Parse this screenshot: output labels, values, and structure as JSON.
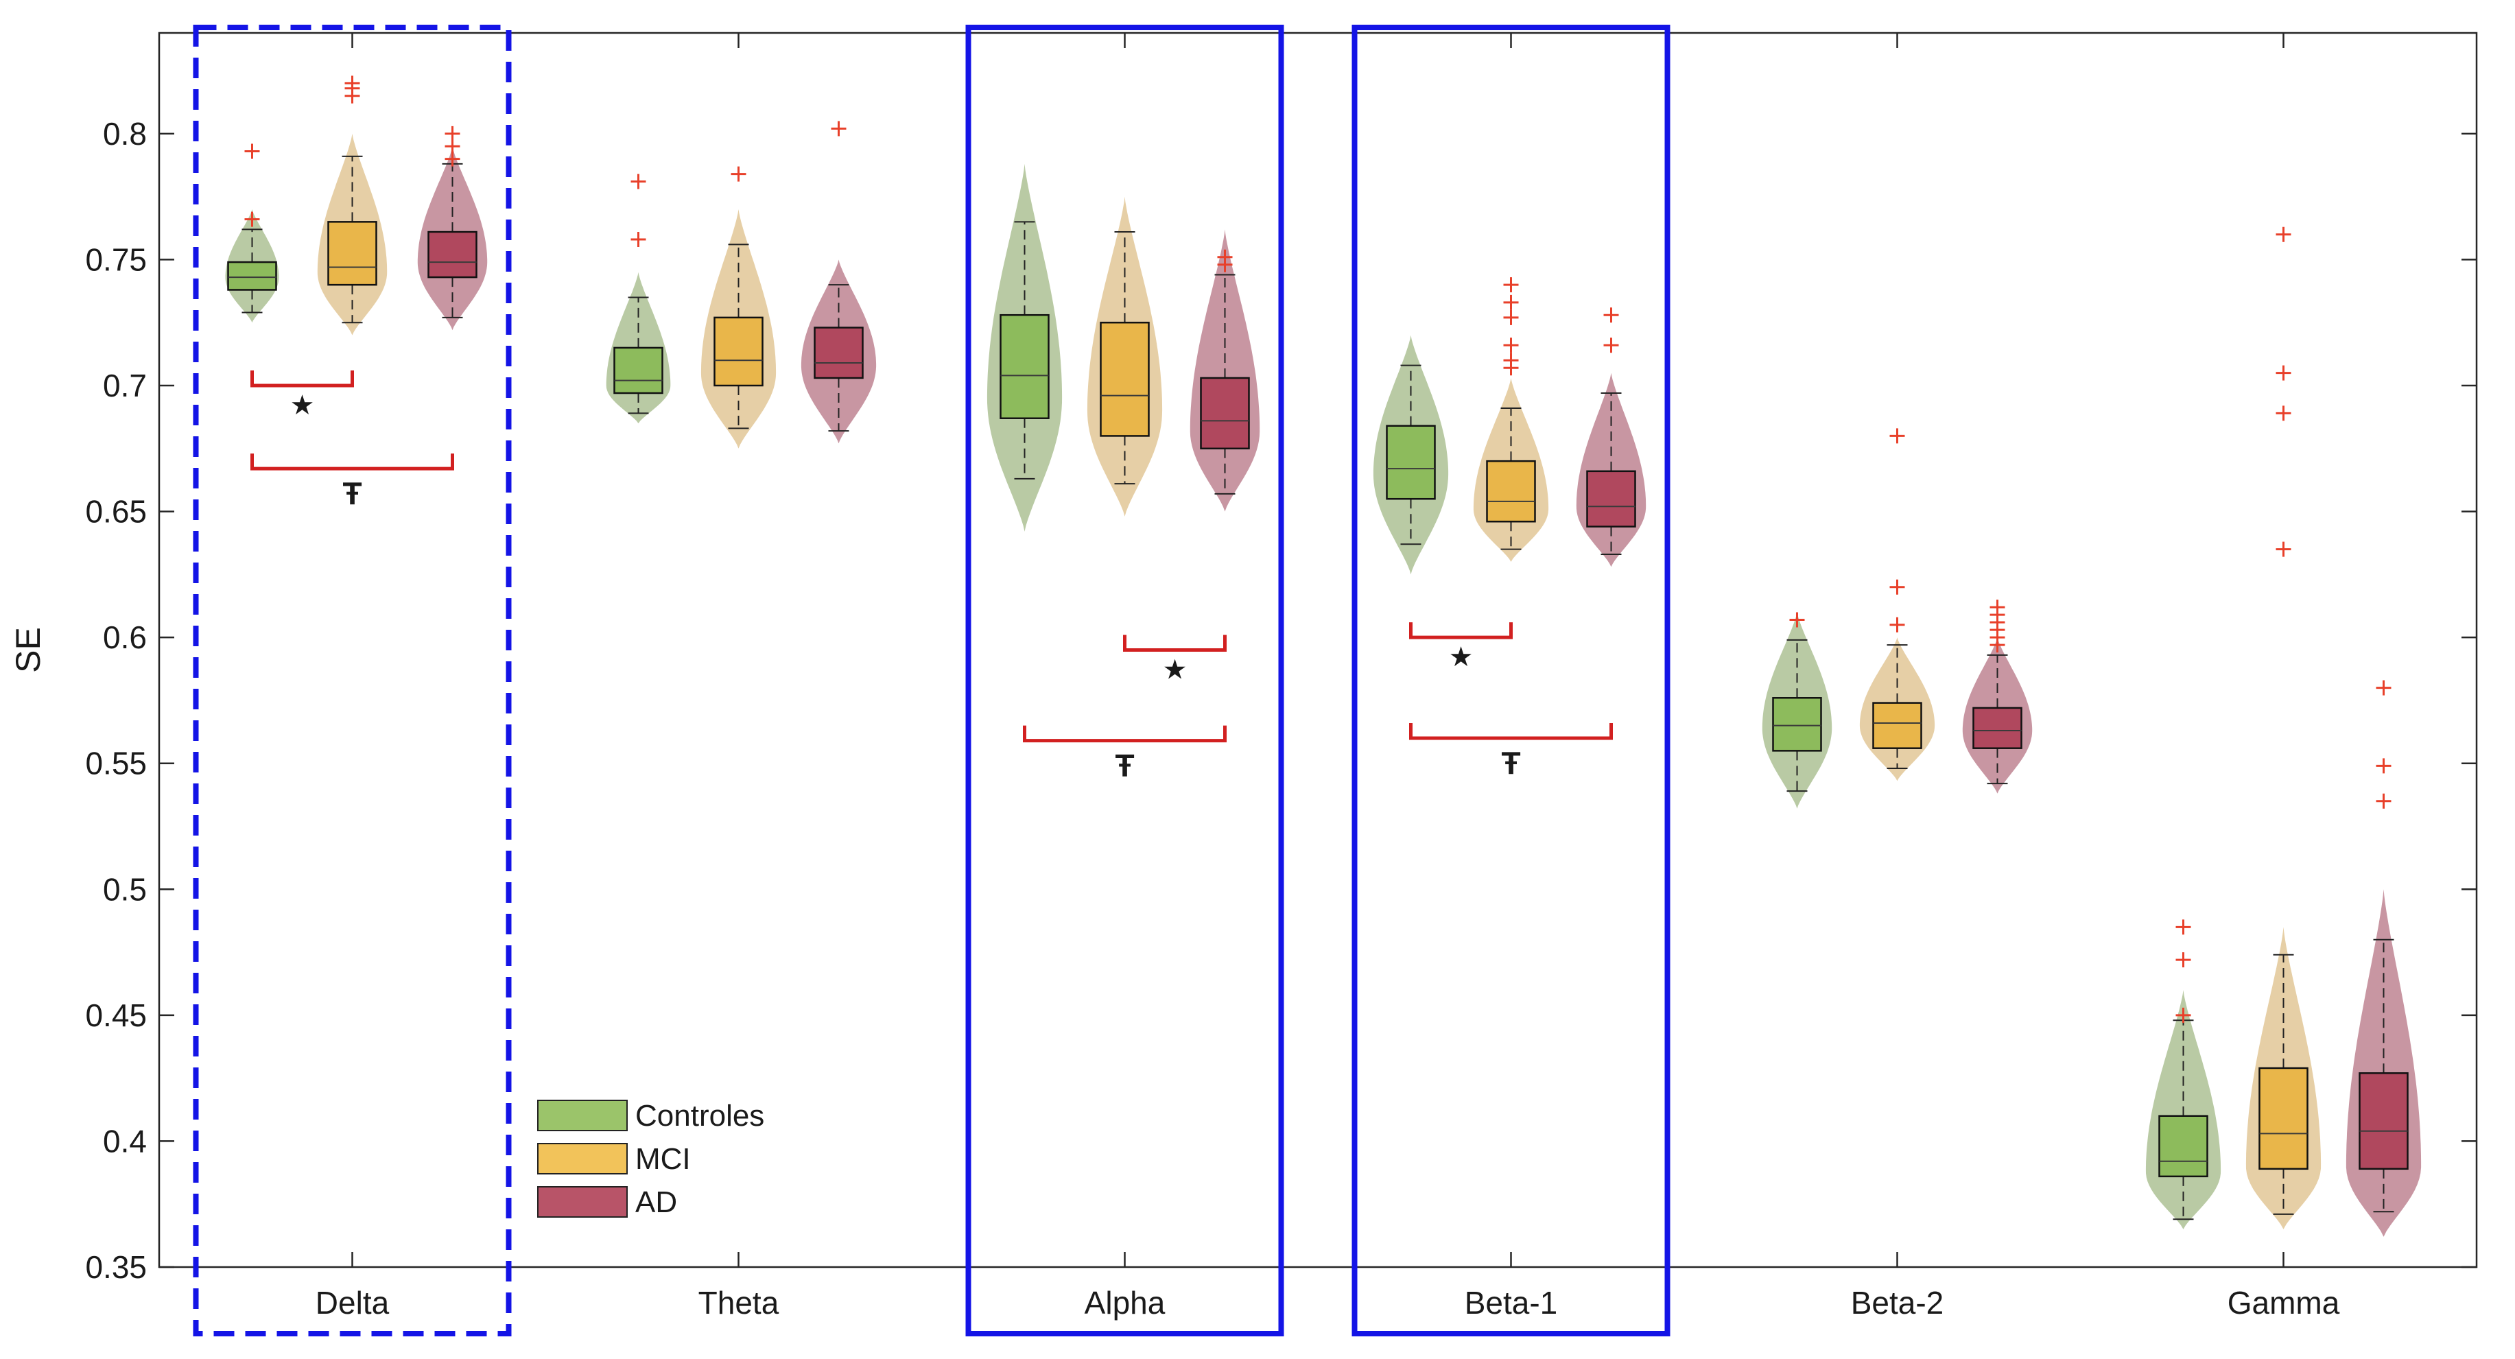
{
  "chart_data": {
    "type": "violin-box",
    "title": "",
    "xlabel": "",
    "ylabel": "SE",
    "ylim": [
      0.35,
      0.84
    ],
    "yticks": [
      0.35,
      0.4,
      0.45,
      0.5,
      0.55,
      0.6,
      0.65,
      0.7,
      0.75,
      0.8
    ],
    "ytick_labels": [
      "0.35",
      "0.4",
      "0.45",
      "0.5",
      "0.55",
      "0.6",
      "0.65",
      "0.7",
      "0.75",
      "0.8"
    ],
    "categories": [
      "Delta",
      "Theta",
      "Alpha",
      "Beta-1",
      "Beta-2",
      "Gamma"
    ],
    "legend": [
      {
        "name": "Controles",
        "color": "#9bc46a"
      },
      {
        "name": "MCI",
        "color": "#f2c35a"
      },
      {
        "name": "AD",
        "color": "#b85468"
      }
    ],
    "groups": [
      {
        "name": "Controles",
        "violin_color": "#7f9f5a",
        "box_color": "#8dbb5c"
      },
      {
        "name": "MCI",
        "violin_color": "#d1a85c",
        "box_color": "#e9b64a"
      },
      {
        "name": "AD",
        "violin_color": "#9a3f55",
        "box_color": "#b0485e"
      }
    ],
    "series": [
      {
        "band": "Delta",
        "group": "Controles",
        "q1": 0.738,
        "median": 0.743,
        "q3": 0.749,
        "wlo": 0.729,
        "whi": 0.762,
        "vmin": 0.725,
        "vmax": 0.77,
        "mode": 0.743,
        "width": 0.5,
        "outliers": [
          0.766,
          0.793
        ]
      },
      {
        "band": "Delta",
        "group": "MCI",
        "q1": 0.74,
        "median": 0.747,
        "q3": 0.765,
        "wlo": 0.725,
        "whi": 0.791,
        "vmin": 0.72,
        "vmax": 0.8,
        "mode": 0.745,
        "width": 0.65,
        "outliers": [
          0.815,
          0.818,
          0.82
        ]
      },
      {
        "band": "Delta",
        "group": "AD",
        "q1": 0.743,
        "median": 0.749,
        "q3": 0.761,
        "wlo": 0.727,
        "whi": 0.788,
        "vmin": 0.722,
        "vmax": 0.795,
        "mode": 0.749,
        "width": 0.65,
        "outliers": [
          0.79,
          0.795,
          0.8
        ]
      },
      {
        "band": "Theta",
        "group": "Controles",
        "q1": 0.697,
        "median": 0.702,
        "q3": 0.715,
        "wlo": 0.689,
        "whi": 0.735,
        "vmin": 0.685,
        "vmax": 0.745,
        "mode": 0.7,
        "width": 0.6,
        "outliers": [
          0.758,
          0.781
        ]
      },
      {
        "band": "Theta",
        "group": "MCI",
        "q1": 0.7,
        "median": 0.71,
        "q3": 0.727,
        "wlo": 0.683,
        "whi": 0.756,
        "vmin": 0.675,
        "vmax": 0.77,
        "mode": 0.705,
        "width": 0.7,
        "outliers": [
          0.784
        ]
      },
      {
        "band": "Theta",
        "group": "AD",
        "q1": 0.703,
        "median": 0.709,
        "q3": 0.723,
        "wlo": 0.682,
        "whi": 0.74,
        "vmin": 0.677,
        "vmax": 0.75,
        "mode": 0.708,
        "width": 0.7,
        "outliers": [
          0.802
        ]
      },
      {
        "band": "Alpha",
        "group": "Controles",
        "q1": 0.687,
        "median": 0.704,
        "q3": 0.728,
        "wlo": 0.663,
        "whi": 0.765,
        "vmin": 0.642,
        "vmax": 0.788,
        "mode": 0.695,
        "width": 0.7,
        "outliers": []
      },
      {
        "band": "Alpha",
        "group": "MCI",
        "q1": 0.68,
        "median": 0.696,
        "q3": 0.725,
        "wlo": 0.661,
        "whi": 0.761,
        "vmin": 0.648,
        "vmax": 0.775,
        "mode": 0.69,
        "width": 0.7,
        "outliers": []
      },
      {
        "band": "Alpha",
        "group": "AD",
        "q1": 0.675,
        "median": 0.686,
        "q3": 0.703,
        "wlo": 0.657,
        "whi": 0.744,
        "vmin": 0.65,
        "vmax": 0.762,
        "mode": 0.682,
        "width": 0.65,
        "outliers": [
          0.748,
          0.751
        ]
      },
      {
        "band": "Beta-1",
        "group": "Controles",
        "q1": 0.655,
        "median": 0.667,
        "q3": 0.684,
        "wlo": 0.637,
        "whi": 0.708,
        "vmin": 0.625,
        "vmax": 0.72,
        "mode": 0.665,
        "width": 0.7,
        "outliers": []
      },
      {
        "band": "Beta-1",
        "group": "MCI",
        "q1": 0.646,
        "median": 0.654,
        "q3": 0.67,
        "wlo": 0.635,
        "whi": 0.691,
        "vmin": 0.63,
        "vmax": 0.703,
        "mode": 0.651,
        "width": 0.7,
        "outliers": [
          0.707,
          0.71,
          0.716,
          0.727,
          0.733,
          0.74
        ]
      },
      {
        "band": "Beta-1",
        "group": "AD",
        "q1": 0.644,
        "median": 0.652,
        "q3": 0.666,
        "wlo": 0.633,
        "whi": 0.697,
        "vmin": 0.628,
        "vmax": 0.705,
        "mode": 0.652,
        "width": 0.65,
        "outliers": [
          0.716,
          0.728
        ]
      },
      {
        "band": "Beta-2",
        "group": "Controles",
        "q1": 0.555,
        "median": 0.565,
        "q3": 0.576,
        "wlo": 0.539,
        "whi": 0.599,
        "vmin": 0.532,
        "vmax": 0.61,
        "mode": 0.564,
        "width": 0.65,
        "outliers": [
          0.607
        ]
      },
      {
        "band": "Beta-2",
        "group": "MCI",
        "q1": 0.556,
        "median": 0.566,
        "q3": 0.574,
        "wlo": 0.548,
        "whi": 0.597,
        "vmin": 0.543,
        "vmax": 0.6,
        "mode": 0.565,
        "width": 0.7,
        "outliers": [
          0.605,
          0.62,
          0.68
        ]
      },
      {
        "band": "Beta-2",
        "group": "AD",
        "q1": 0.556,
        "median": 0.563,
        "q3": 0.572,
        "wlo": 0.542,
        "whi": 0.593,
        "vmin": 0.538,
        "vmax": 0.6,
        "mode": 0.563,
        "width": 0.65,
        "outliers": [
          0.597,
          0.6,
          0.603,
          0.606,
          0.609,
          0.612
        ]
      },
      {
        "band": "Gamma",
        "group": "Controles",
        "q1": 0.386,
        "median": 0.392,
        "q3": 0.41,
        "wlo": 0.369,
        "whi": 0.448,
        "vmin": 0.365,
        "vmax": 0.46,
        "mode": 0.388,
        "width": 0.7,
        "outliers": [
          0.45,
          0.472,
          0.485
        ]
      },
      {
        "band": "Gamma",
        "group": "MCI",
        "q1": 0.389,
        "median": 0.403,
        "q3": 0.429,
        "wlo": 0.371,
        "whi": 0.474,
        "vmin": 0.365,
        "vmax": 0.485,
        "mode": 0.39,
        "width": 0.7,
        "outliers": [
          0.635,
          0.689,
          0.705,
          0.76
        ]
      },
      {
        "band": "Gamma",
        "group": "AD",
        "q1": 0.389,
        "median": 0.404,
        "q3": 0.427,
        "wlo": 0.372,
        "whi": 0.48,
        "vmin": 0.362,
        "vmax": 0.5,
        "mode": 0.39,
        "width": 0.7,
        "outliers": [
          0.535,
          0.549,
          0.58
        ]
      }
    ],
    "significance": [
      {
        "band": "Delta",
        "from": "Controles",
        "to": "MCI",
        "y": 0.7,
        "symbol": "★"
      },
      {
        "band": "Delta",
        "from": "Controles",
        "to": "AD",
        "y": 0.667,
        "symbol": "Ŧ"
      },
      {
        "band": "Alpha",
        "from": "MCI",
        "to": "AD",
        "y": 0.595,
        "symbol": "★"
      },
      {
        "band": "Alpha",
        "from": "Controles",
        "to": "AD",
        "y": 0.559,
        "symbol": "Ŧ"
      },
      {
        "band": "Beta-1",
        "from": "Controles",
        "to": "MCI",
        "y": 0.6,
        "symbol": "★"
      },
      {
        "band": "Beta-1",
        "from": "Controles",
        "to": "AD",
        "y": 0.56,
        "symbol": "Ŧ"
      }
    ],
    "highlights": [
      {
        "band": "Delta",
        "style": "dashed",
        "color": "#1414e6"
      },
      {
        "band": "Alpha",
        "style": "solid",
        "color": "#1414e6"
      },
      {
        "band": "Beta-1",
        "style": "solid",
        "color": "#1414e6"
      }
    ]
  }
}
